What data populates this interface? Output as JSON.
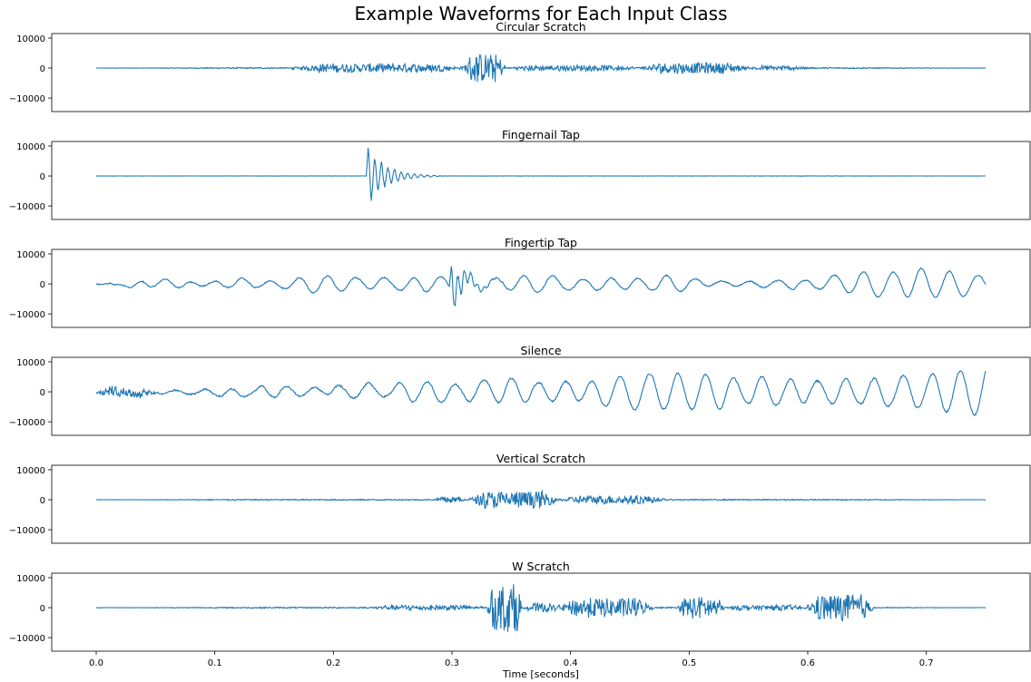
{
  "figure": {
    "title": "Example Waveforms for Each Input Class",
    "xlabel": "Time [seconds]"
  },
  "chart_data": {
    "type": "line",
    "title": "Example Waveforms for Each Input Class",
    "xlabel": "Time [seconds]",
    "ylabel": "",
    "xlim": [
      -0.0375,
      0.7875
    ],
    "ylim": [
      -14500,
      11500
    ],
    "x_ticks": [
      0.0,
      0.1,
      0.2,
      0.3,
      0.4,
      0.5,
      0.6,
      0.7
    ],
    "x_tick_labels": [
      "0.0",
      "0.1",
      "0.2",
      "0.3",
      "0.4",
      "0.5",
      "0.6",
      "0.7"
    ],
    "y_ticks": [
      10000,
      0,
      -10000
    ],
    "y_tick_labels": [
      "10000",
      "0",
      "−10000"
    ],
    "line_color": "#1f77b4",
    "grid": false,
    "shared_x": true,
    "signal_duration": 0.75,
    "panels": [
      {
        "title": "Circular Scratch",
        "events": [
          {
            "t0": 0.0,
            "t1": 0.75,
            "amp": 220,
            "type": "noise"
          },
          {
            "t0": 0.165,
            "t1": 0.31,
            "amp": 1400,
            "type": "noise"
          },
          {
            "t0": 0.31,
            "t1": 0.345,
            "amp": 4800,
            "type": "noise"
          },
          {
            "t0": 0.345,
            "t1": 0.46,
            "amp": 900,
            "type": "noise"
          },
          {
            "t0": 0.46,
            "t1": 0.55,
            "amp": 1800,
            "type": "noise"
          },
          {
            "t0": 0.55,
            "t1": 0.6,
            "amp": 700,
            "type": "noise"
          }
        ]
      },
      {
        "title": "Fingernail Tap",
        "events": [
          {
            "t0": 0.0,
            "t1": 0.75,
            "amp": 60,
            "type": "noise"
          },
          {
            "t0": 0.228,
            "t1": 0.29,
            "amp": 11000,
            "type": "decay"
          }
        ]
      },
      {
        "title": "Fingertip Tap",
        "events": [
          {
            "t0": 0.0,
            "t1": 0.75,
            "amp": 700,
            "type": "wander"
          },
          {
            "t0": 0.298,
            "t1": 0.345,
            "amp": 9500,
            "type": "decay"
          }
        ]
      },
      {
        "title": "Silence",
        "events": [
          {
            "t0": 0.0,
            "t1": 0.75,
            "amp": 1000,
            "type": "wander"
          },
          {
            "t0": 0.0,
            "t1": 0.05,
            "amp": 1500,
            "type": "noise"
          }
        ]
      },
      {
        "title": "Vertical Scratch",
        "events": [
          {
            "t0": 0.0,
            "t1": 0.75,
            "amp": 180,
            "type": "noise"
          },
          {
            "t0": 0.285,
            "t1": 0.31,
            "amp": 1100,
            "type": "noise"
          },
          {
            "t0": 0.315,
            "t1": 0.39,
            "amp": 2800,
            "type": "noise"
          },
          {
            "t0": 0.39,
            "t1": 0.48,
            "amp": 1400,
            "type": "noise"
          }
        ]
      },
      {
        "title": "W Scratch",
        "events": [
          {
            "t0": 0.0,
            "t1": 0.75,
            "amp": 200,
            "type": "noise"
          },
          {
            "t0": 0.23,
            "t1": 0.33,
            "amp": 800,
            "type": "noise"
          },
          {
            "t0": 0.33,
            "t1": 0.36,
            "amp": 8000,
            "type": "noise"
          },
          {
            "t0": 0.36,
            "t1": 0.39,
            "amp": 1400,
            "type": "noise"
          },
          {
            "t0": 0.39,
            "t1": 0.47,
            "amp": 3200,
            "type": "noise"
          },
          {
            "t0": 0.49,
            "t1": 0.53,
            "amp": 3800,
            "type": "noise"
          },
          {
            "t0": 0.53,
            "t1": 0.6,
            "amp": 800,
            "type": "noise"
          },
          {
            "t0": 0.6,
            "t1": 0.655,
            "amp": 4500,
            "type": "noise"
          }
        ]
      }
    ]
  }
}
